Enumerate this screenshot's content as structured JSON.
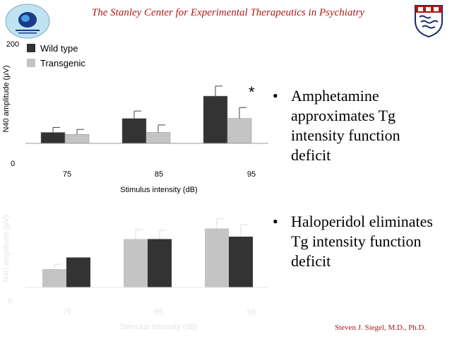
{
  "header": {
    "title": "The Stanley Center for Experimental Therapeutics in Psychiatry"
  },
  "logos": {
    "left": "stanley-center-logo-icon",
    "right": "penn-shield-icon"
  },
  "colors": {
    "title": "#b01818",
    "wild_type": "#333333",
    "transgenic": "#c4c4c4"
  },
  "chart_data": [
    {
      "type": "bar",
      "categories": [
        "75",
        "85",
        "95"
      ],
      "series": [
        {
          "name": "Wild type",
          "values": [
            22,
            50,
            95
          ],
          "errors": [
            10,
            15,
            20
          ]
        },
        {
          "name": "Transgenic",
          "values": [
            18,
            22,
            50
          ],
          "errors": [
            10,
            15,
            22
          ]
        }
      ],
      "title": "",
      "xlabel": "Stimulus intensity (dB)",
      "ylabel": "N40 amplitude (µV)",
      "ylim": [
        0,
        200
      ],
      "yticks": [
        "200",
        "0"
      ],
      "legend": "top-left",
      "annotations": [
        "*"
      ]
    },
    {
      "type": "bar",
      "categories": [
        "75",
        "85",
        "95"
      ],
      "series": [
        {
          "values": [
            38,
            100,
            122
          ],
          "errors": [
            10,
            20,
            20
          ]
        },
        {
          "values": [
            62,
            100,
            105
          ],
          "errors": [
            0,
            18,
            25
          ]
        }
      ],
      "xlabel": "Stimulus intensity (dB)",
      "ylabel": "N40 amplitude (µV)",
      "ylim": [
        0,
        200
      ],
      "yticks": [
        "0"
      ],
      "faded": true
    }
  ],
  "bullets": [
    "Amphetamine approximates Tg intensity function deficit",
    "Haloperidol eliminates Tg intensity function deficit"
  ],
  "footer": {
    "author": "Steven J. Siegel, M.D., Ph.D."
  }
}
